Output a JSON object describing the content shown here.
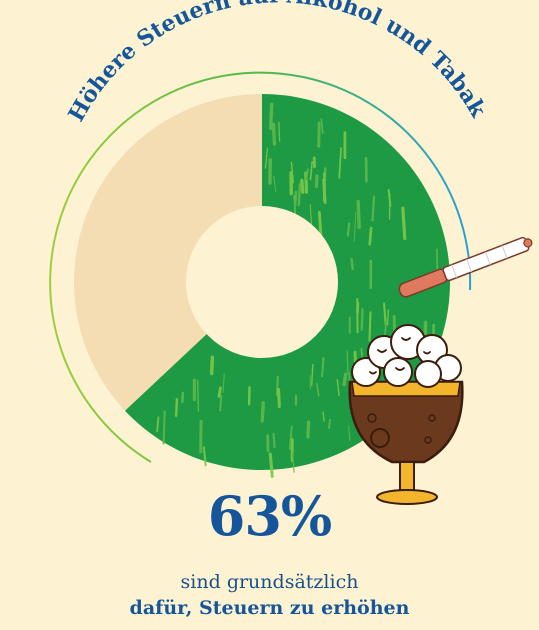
{
  "chart_data": {
    "type": "pie",
    "title": "Höhere Steuern auf Alkohol und Tabak",
    "slices": [
      {
        "value": 63,
        "color": "#1e9a45"
      },
      {
        "value": 37,
        "color": "#f4ddb3"
      }
    ],
    "highlight_value": "63%",
    "caption_line1": "sind grundsätzlich",
    "caption_line2": "dafür, Steuern zu erhöhen"
  },
  "colors": {
    "background": "#fdf3d3",
    "title": "#15569a",
    "agree": "#1e9a45",
    "rest": "#f4ddb3",
    "arc_left": "#9ccf3a",
    "arc_right": "#2aa0d4"
  },
  "decorations": [
    "cigarette-icon",
    "beer-glass-icon"
  ]
}
